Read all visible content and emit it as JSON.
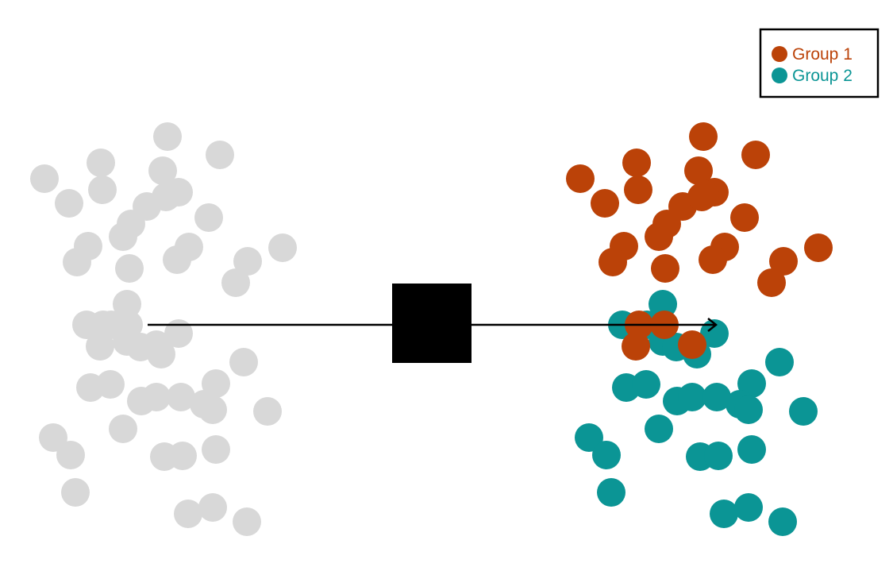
{
  "colors": {
    "unlabeled": "#d8d8d8",
    "group1": "#bb4208",
    "group2": "#0b9595",
    "box": "#000000",
    "arrow": "#000000"
  },
  "legend": {
    "position": "top-right",
    "items": [
      {
        "label": "Group 1",
        "color": "#bb4208"
      },
      {
        "label": "Group 2",
        "color": "#0b9595"
      }
    ]
  },
  "process_box": {
    "label": ""
  },
  "input_points": {
    "count": 53,
    "color": "#d8d8d8"
  },
  "output_points": {
    "group1_count": 27,
    "group2_count": 26
  }
}
